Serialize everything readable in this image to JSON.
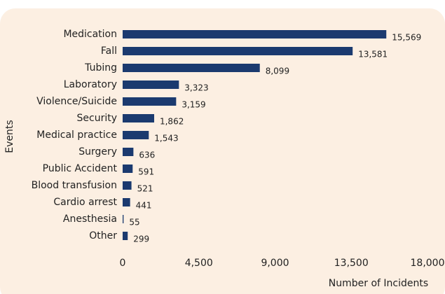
{
  "chart_data": {
    "type": "bar",
    "orientation": "horizontal",
    "categories": [
      "Medication",
      "Fall",
      "Tubing",
      "Laboratory",
      "Violence/Suicide",
      "Security",
      "Medical practice",
      "Surgery",
      "Public Accident",
      "Blood transfusion",
      "Cardio arrest",
      "Anesthesia",
      "Other"
    ],
    "values": [
      15569,
      13581,
      8099,
      3323,
      3159,
      1862,
      1543,
      636,
      591,
      521,
      441,
      55,
      299
    ],
    "value_labels": [
      "15,569",
      "13,581",
      "8,099",
      "3,323",
      "3,159",
      "1,862",
      "1,543",
      "636",
      "591",
      "521",
      "441",
      "55",
      "299"
    ],
    "color": "#1b3a6f",
    "xlim": [
      0,
      18000
    ],
    "xticks": [
      0,
      {
        "value": 4500,
        "label": "4,500"
      },
      {
        "value": 9000,
        "label": "9,000"
      },
      {
        "value": 13500,
        "label": "13,500"
      },
      {
        "value": 18000,
        "label": "18,000"
      }
    ],
    "xlabel": "Number of Incidents",
    "ylabel": "Events",
    "grid": false
  }
}
